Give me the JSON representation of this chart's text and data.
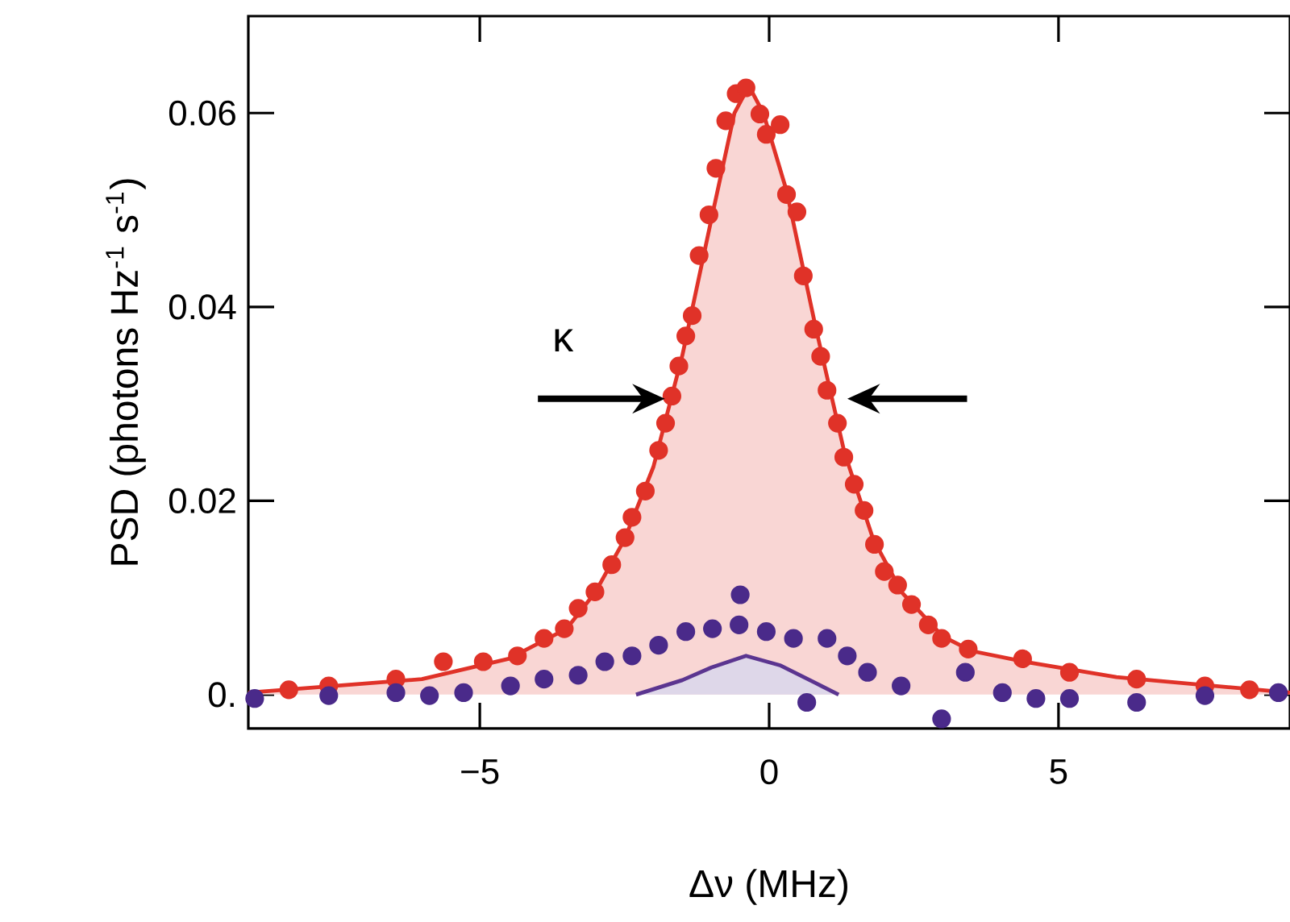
{
  "chart_data": {
    "type": "scatter",
    "xlabel": "Δν (MHz)",
    "ylabel": "PSD (photons Hz$^{-1}$ s$^{-1}$)",
    "xlim": [
      -9,
      9
    ],
    "ylim": [
      -0.0035,
      0.07
    ],
    "xticks": [
      {
        "value": -5,
        "label": "−5"
      },
      0,
      5
    ],
    "yticks": [
      {
        "value": 0,
        "label": "0."
      },
      0.02,
      0.04,
      0.06
    ],
    "grid": false,
    "annotations": [
      "κ"
    ],
    "series": [
      {
        "type": "area",
        "marker": "none",
        "color": "#e03228",
        "x": [
          -9,
          -6,
          -4.5,
          -3.5,
          -3,
          -2.5,
          -2,
          -1.5,
          -1,
          -0.6,
          -0.35,
          -0.1,
          0.3,
          0.8,
          1.3,
          1.8,
          2.3,
          3,
          3.5,
          4.5,
          6,
          9
        ],
        "values": [
          0.0002,
          0.0016,
          0.0037,
          0.0068,
          0.0106,
          0.016,
          0.0235,
          0.035,
          0.049,
          0.06,
          0.0628,
          0.06,
          0.052,
          0.038,
          0.025,
          0.016,
          0.0105,
          0.006,
          0.0045,
          0.0033,
          0.0018,
          0.0002
        ]
      },
      {
        "type": "area",
        "marker": "none",
        "color": "#5b3590",
        "x": [
          -2.3,
          -1.5,
          -1,
          -0.4,
          0.2,
          0.8,
          1.2
        ],
        "values": [
          0,
          0.0015,
          0.0028,
          0.004,
          0.003,
          0.0012,
          0
        ]
      },
      {
        "marker": "circle",
        "color": "#e03228",
        "x": [
          -8.3,
          -7.61,
          -6.45,
          -5.63,
          -4.94,
          -4.35,
          -3.89,
          -3.54,
          -3.3,
          -3.01,
          -2.72,
          -2.49,
          -2.37,
          -2.14,
          -1.91,
          -1.79,
          -1.68,
          -1.56,
          -1.44,
          -1.33,
          -1.21,
          -1.04,
          -0.92,
          -0.75,
          -0.57,
          -0.4,
          -0.16,
          -0.05,
          0.19,
          0.3,
          0.48,
          0.59,
          0.77,
          0.89,
          1.0,
          1.18,
          1.29,
          1.47,
          1.64,
          1.82,
          1.99,
          2.22,
          2.46,
          2.75,
          2.98,
          3.44,
          4.38,
          5.19,
          6.35,
          7.53,
          8.3
        ],
        "values": [
          0.0005,
          0.0009,
          0.0016,
          0.0034,
          0.0034,
          0.004,
          0.0058,
          0.0068,
          0.0089,
          0.0106,
          0.0134,
          0.0162,
          0.0183,
          0.021,
          0.0252,
          0.028,
          0.0308,
          0.0339,
          0.037,
          0.0391,
          0.0453,
          0.0495,
          0.0543,
          0.0592,
          0.062,
          0.0626,
          0.0599,
          0.0578,
          0.0588,
          0.0516,
          0.0498,
          0.0432,
          0.0377,
          0.0349,
          0.0314,
          0.028,
          0.0245,
          0.0217,
          0.019,
          0.0155,
          0.0127,
          0.0113,
          0.0093,
          0.0072,
          0.0058,
          0.0047,
          0.0037,
          0.0023,
          0.0016,
          0.0009,
          0.0005
        ]
      },
      {
        "marker": "circle",
        "color": "#4a2a8a",
        "x": [
          -8.89,
          -7.61,
          -6.45,
          -5.87,
          -5.28,
          -4.47,
          -3.89,
          -3.3,
          -2.84,
          -2.37,
          -1.91,
          -1.44,
          -0.98,
          -0.52,
          -0.5,
          -0.05,
          0.42,
          0.65,
          1.0,
          1.35,
          1.7,
          2.28,
          2.98,
          3.39,
          4.03,
          4.61,
          5.19,
          6.35,
          7.53,
          8.8
        ],
        "values": [
          -0.0004,
          -0.0001,
          0.0002,
          -0.0001,
          0.0002,
          0.0009,
          0.0016,
          0.002,
          0.0034,
          0.004,
          0.0051,
          0.0065,
          0.0068,
          0.0072,
          0.0103,
          0.0065,
          0.0058,
          -0.0008,
          0.0058,
          0.004,
          0.0023,
          0.0009,
          -0.0025,
          0.0023,
          0.0002,
          -0.0004,
          -0.0004,
          -0.0008,
          -0.0001,
          0.0002
        ]
      }
    ]
  }
}
